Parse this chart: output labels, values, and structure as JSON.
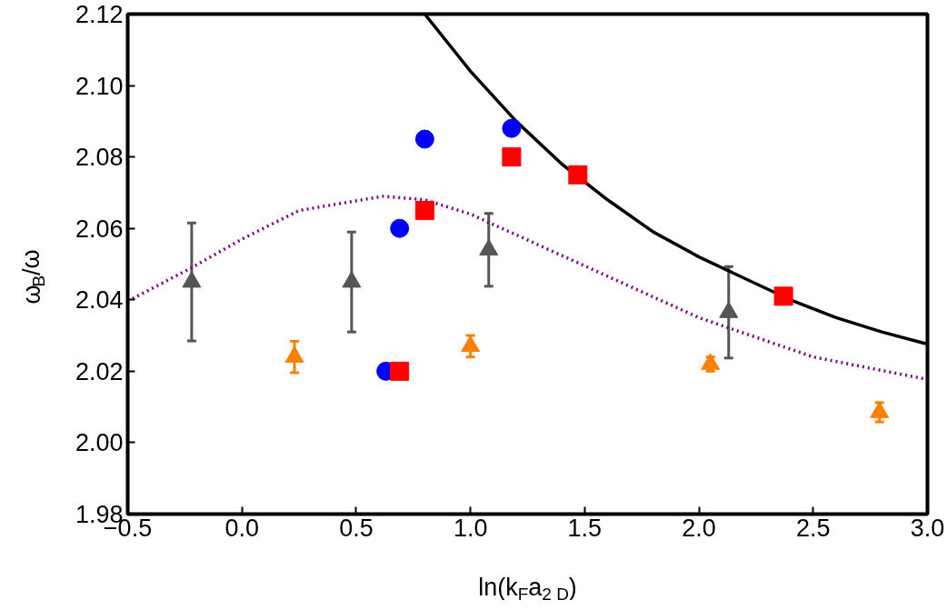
{
  "chart_data": {
    "type": "scatter",
    "xlabel": "ln(k$_{F}$a$_{2 D}$)",
    "ylabel": "ω$_{B}$/ω",
    "xlim": [
      -0.5,
      3.0
    ],
    "ylim": [
      1.98,
      2.12
    ],
    "xticks": [
      {
        "value": -0.5,
        "label": "−0.5"
      },
      {
        "value": 0,
        "label": "0.0"
      },
      {
        "value": 0.5,
        "label": "0.5"
      },
      {
        "value": 1,
        "label": "1.0"
      },
      {
        "value": 1.5,
        "label": "1.5"
      },
      {
        "value": 2,
        "label": "2.0"
      },
      {
        "value": 2.5,
        "label": "2.5"
      },
      {
        "value": 3,
        "label": "3.0"
      }
    ],
    "yticks": [
      {
        "value": 1.98,
        "label": "1.98"
      },
      {
        "value": 2.0,
        "label": "2.00"
      },
      {
        "value": 2.02,
        "label": "2.02"
      },
      {
        "value": 2.04,
        "label": "2.04"
      },
      {
        "value": 2.06,
        "label": "2.06"
      },
      {
        "value": 2.08,
        "label": "2.08"
      },
      {
        "value": 2.1,
        "label": "2.10"
      },
      {
        "value": 2.12,
        "label": "2.12"
      }
    ],
    "grid": false,
    "series": [
      {
        "type": "line",
        "color": "#000000",
        "line_style": "solid",
        "marker": "none",
        "x": [
          0.8,
          1.0,
          1.2,
          1.4,
          1.6,
          1.8,
          2.0,
          2.2,
          2.4,
          2.6,
          2.8,
          3.0
        ],
        "values": [
          2.12,
          2.104,
          2.09,
          2.078,
          2.068,
          2.059,
          2.052,
          2.046,
          2.04,
          2.035,
          2.031,
          2.0276
        ]
      },
      {
        "type": "line",
        "color": "#800080",
        "line_style": "dotted",
        "marker": "none",
        "x": [
          -0.5,
          -0.22,
          0.0,
          0.25,
          0.62,
          0.8,
          1.0,
          1.5,
          2.0,
          2.5,
          3.0
        ],
        "values": [
          2.0396,
          2.049,
          2.057,
          2.065,
          2.069,
          2.068,
          2.064,
          2.0495,
          2.035,
          2.024,
          2.0177
        ]
      },
      {
        "color": "#0000ff",
        "marker": "circle",
        "x": [
          0.63,
          0.69,
          0.8,
          1.18
        ],
        "values": [
          2.02,
          2.06,
          2.085,
          2.088
        ]
      },
      {
        "color": "#ff0000",
        "marker": "square",
        "x": [
          0.69,
          0.8,
          1.18,
          1.47,
          2.37
        ],
        "values": [
          2.02,
          2.065,
          2.08,
          2.075,
          2.041
        ]
      },
      {
        "color": "#555555",
        "marker": "triangle",
        "x": [
          -0.22,
          0.48,
          1.08,
          2.13
        ],
        "values": [
          2.045,
          2.045,
          2.054,
          2.0365
        ],
        "errors": [
          0.0165,
          0.014,
          0.0102,
          0.0128
        ]
      },
      {
        "color": "#ff8000",
        "marker": "triangle",
        "x": [
          0.23,
          1.0,
          2.05,
          2.79
        ],
        "values": [
          2.024,
          2.027,
          2.022,
          2.0085
        ],
        "errors": [
          0.0044,
          0.003,
          0.002,
          0.0027
        ]
      }
    ]
  }
}
